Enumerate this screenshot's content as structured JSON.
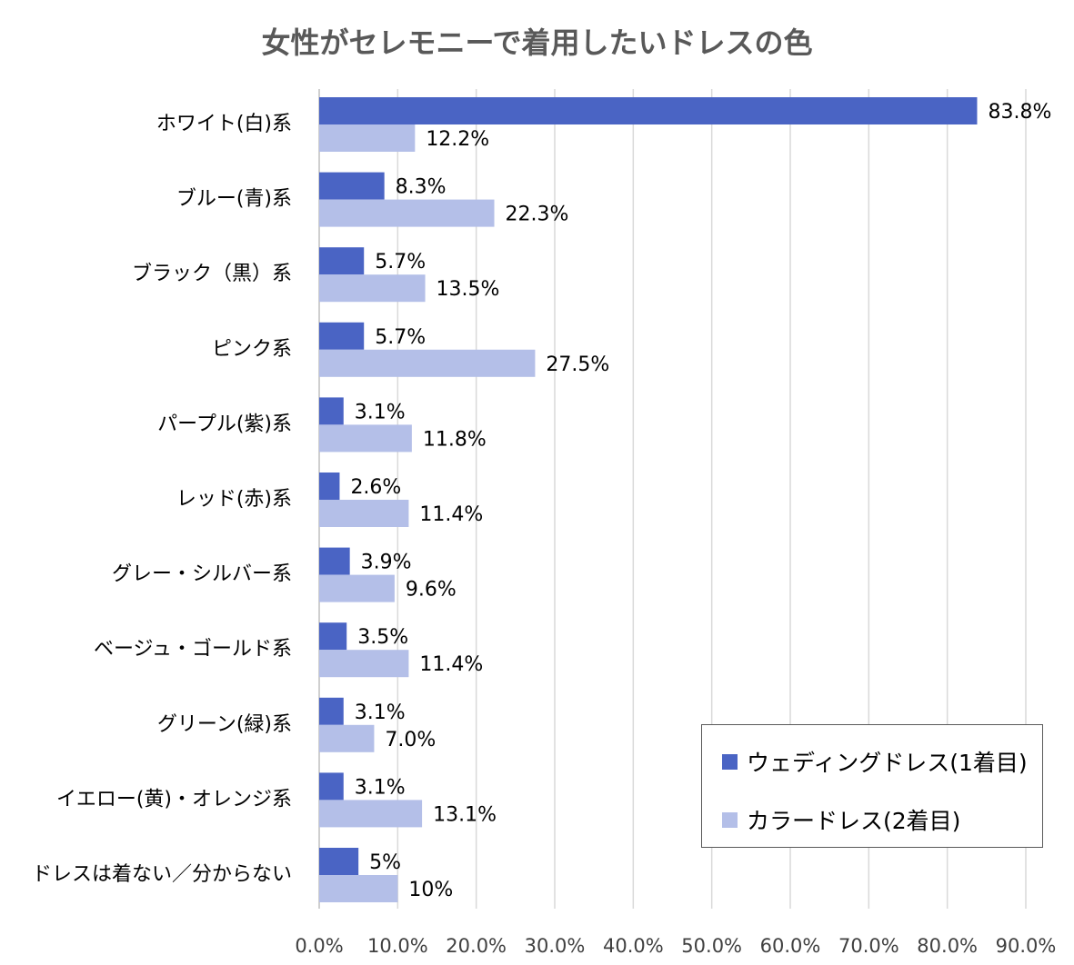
{
  "chart_data": {
    "type": "bar",
    "orientation": "horizontal",
    "title": "女性がセレモニーで着用したいドレスの色",
    "categories": [
      "ホワイト(白)系",
      "ブルー(青)系",
      "ブラック（黒）系",
      "ピンク系",
      "パープル(紫)系",
      "レッド(赤)系",
      "グレー・シルバー系",
      "ベージュ・ゴールド系",
      "グリーン(緑)系",
      "イエロー(黄)・オレンジ系",
      "ドレスは着ない／分からない"
    ],
    "series": [
      {
        "name": "ウェディングドレス(1着目)",
        "color": "#4a64c4",
        "values": [
          83.8,
          8.3,
          5.7,
          5.7,
          3.1,
          2.6,
          3.9,
          3.5,
          3.1,
          3.1,
          5
        ],
        "labels": [
          "83.8%",
          "8.3%",
          "5.7%",
          "5.7%",
          "3.1%",
          "2.6%",
          "3.9%",
          "3.5%",
          "3.1%",
          "3.1%",
          "5%"
        ]
      },
      {
        "name": "カラードレス(2着目)",
        "color": "#b4bfe8",
        "values": [
          12.2,
          22.3,
          13.5,
          27.5,
          11.8,
          11.4,
          9.6,
          11.4,
          7.0,
          13.1,
          10
        ],
        "labels": [
          "12.2%",
          "22.3%",
          "13.5%",
          "27.5%",
          "11.8%",
          "11.4%",
          "9.6%",
          "11.4%",
          "7.0%",
          "13.1%",
          "10%"
        ]
      }
    ],
    "xlim": [
      0,
      90
    ],
    "xticks": [
      0,
      10,
      20,
      30,
      40,
      50,
      60,
      70,
      80,
      90
    ],
    "xtick_labels": [
      "0.0%",
      "10.0%",
      "20.0%",
      "30.0%",
      "40.0%",
      "50.0%",
      "60.0%",
      "70.0%",
      "80.0%",
      "90.0%"
    ],
    "grid": true,
    "legend_position": "bottom-right"
  }
}
